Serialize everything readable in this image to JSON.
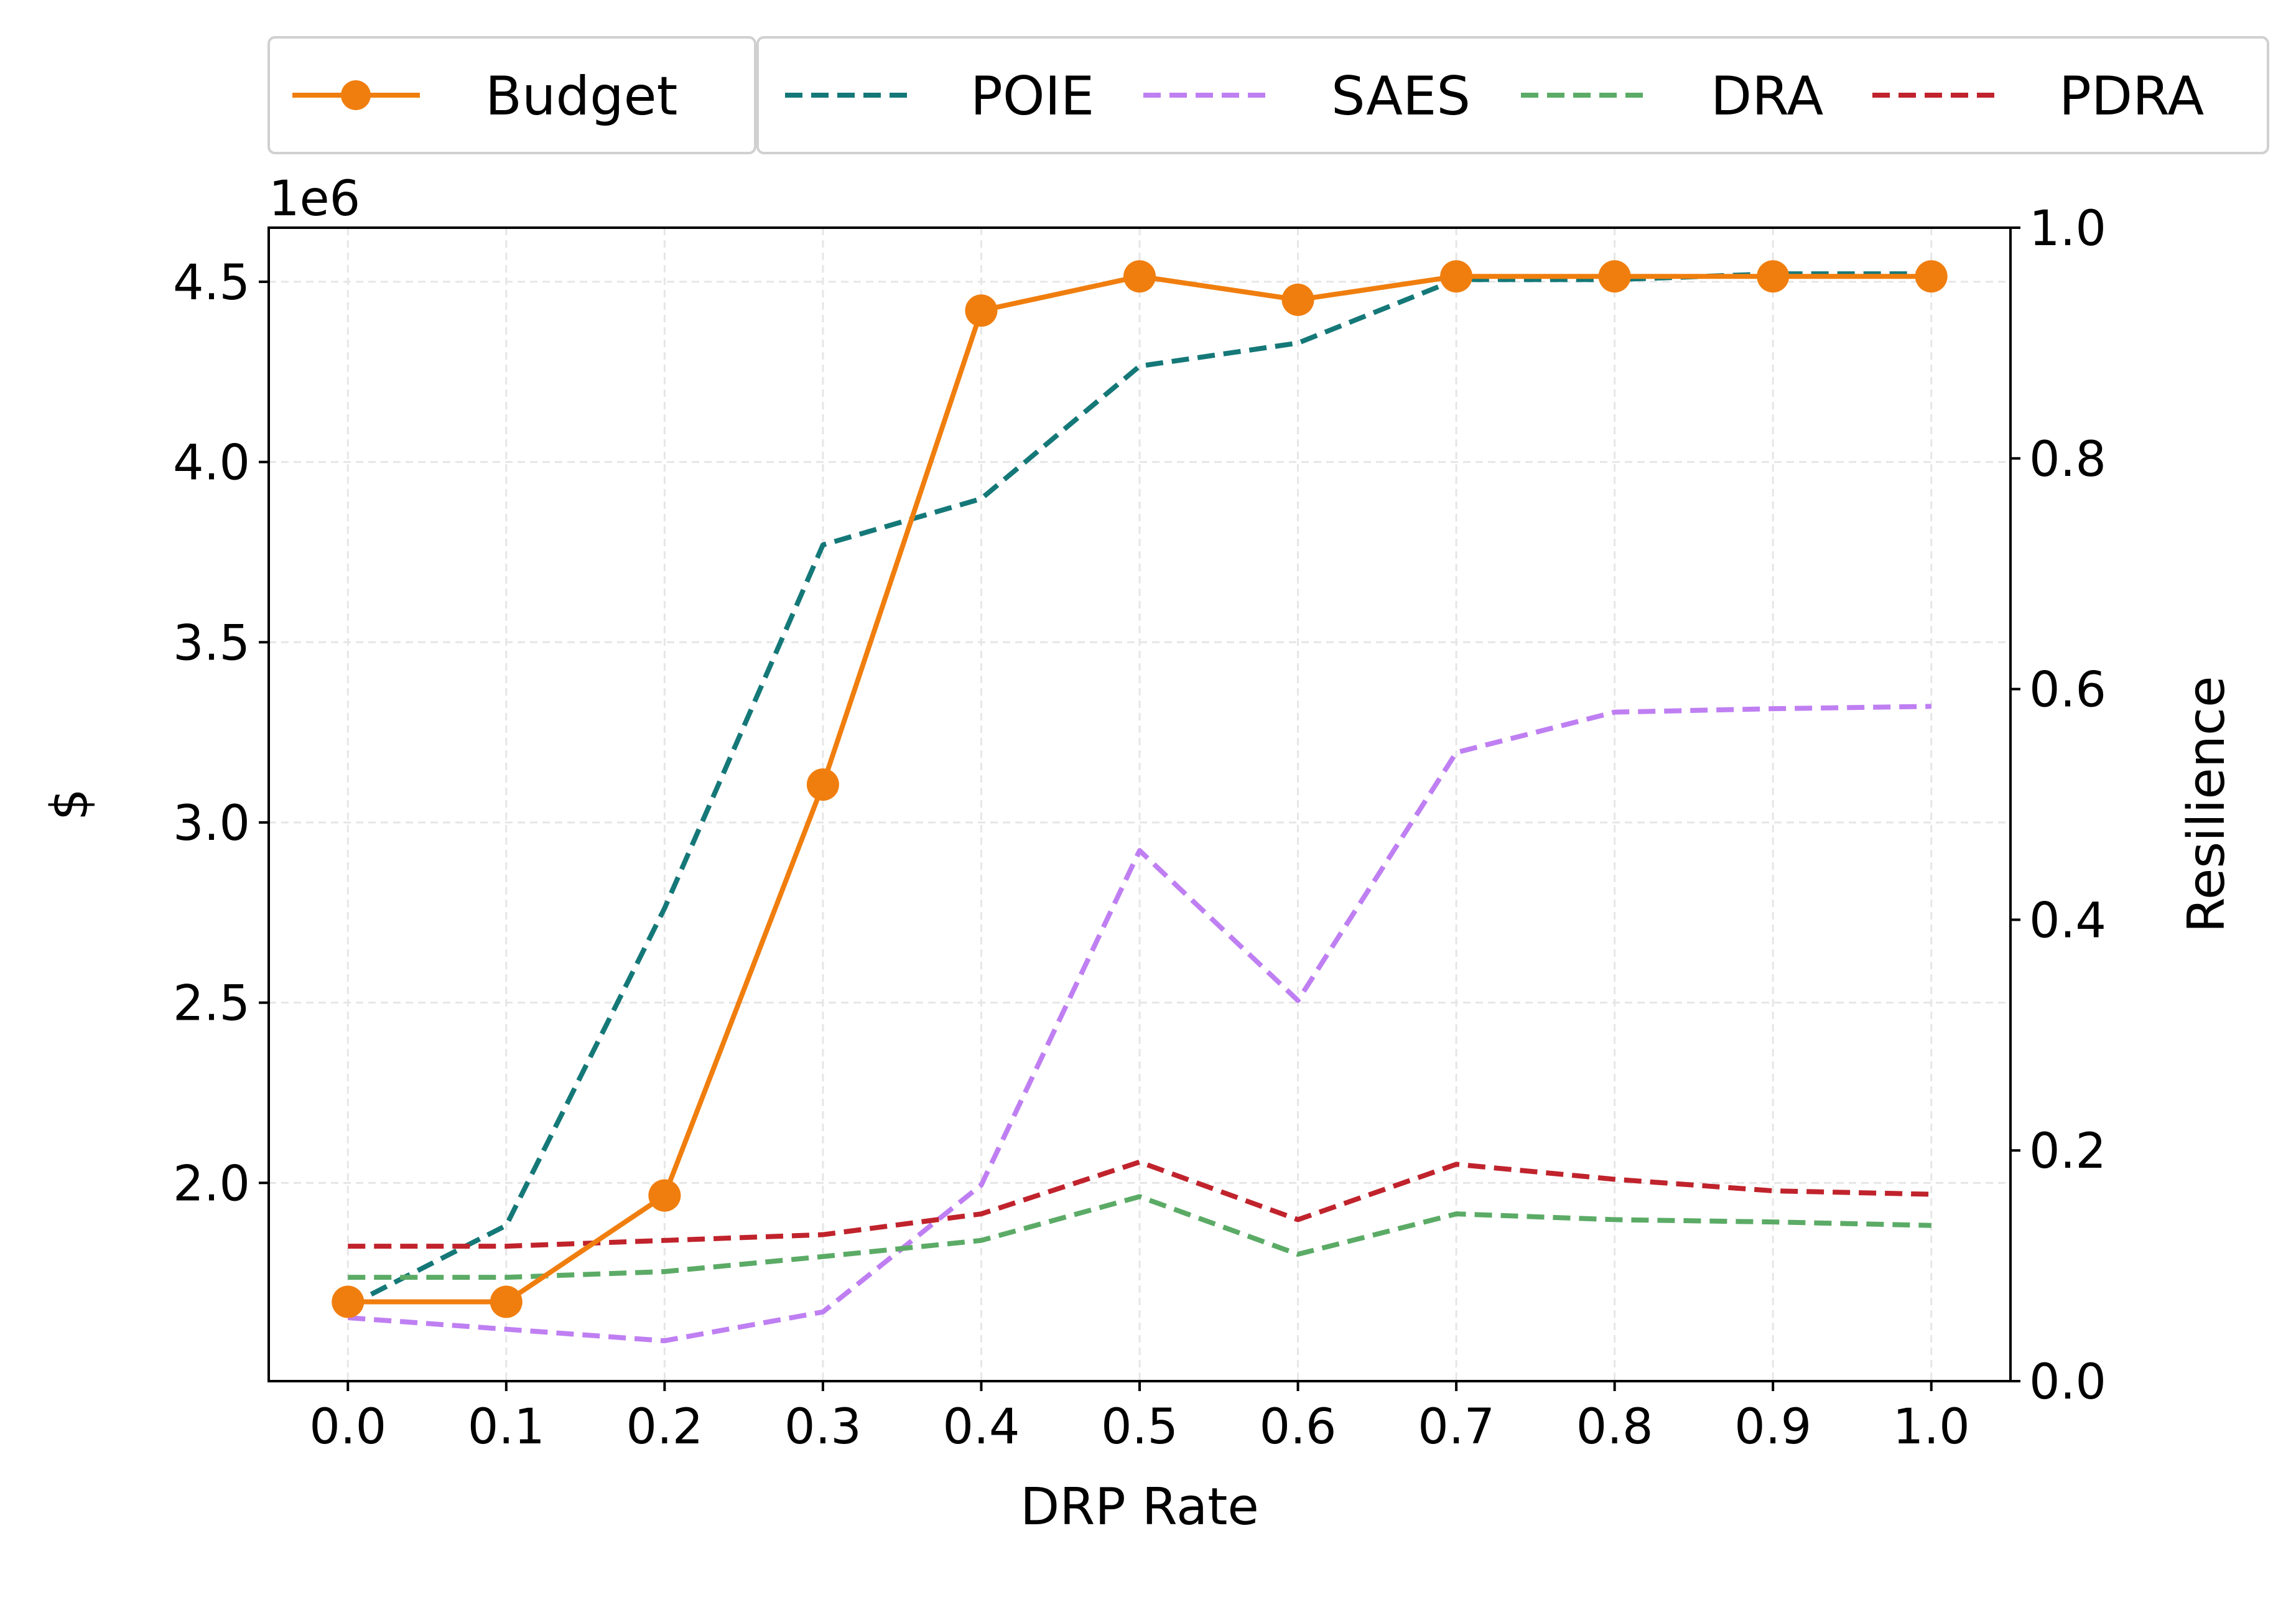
{
  "chart_data": {
    "type": "line",
    "xlabel": "DRP Rate",
    "ylabel": "$",
    "ylabel_right": "Resilience",
    "y_offset_label": "1e6",
    "x": [
      0.0,
      0.1,
      0.2,
      0.3,
      0.4,
      0.5,
      0.6,
      0.7,
      0.8,
      0.9,
      1.0
    ],
    "x_tick_labels": [
      "0.0",
      "0.1",
      "0.2",
      "0.3",
      "0.4",
      "0.5",
      "0.6",
      "0.7",
      "0.8",
      "0.9",
      "1.0"
    ],
    "xlim": [
      -0.05,
      1.05
    ],
    "y_left_ticks": [
      2.0,
      2.5,
      3.0,
      3.5,
      4.0,
      4.5
    ],
    "y_left_tick_labels": [
      "2.0",
      "2.5",
      "3.0",
      "3.5",
      "4.0",
      "4.5"
    ],
    "y_left_lim": [
      1.45,
      4.65
    ],
    "y_right_ticks": [
      0.0,
      0.2,
      0.4,
      0.6,
      0.8,
      1.0
    ],
    "y_right_tick_labels": [
      "0.0",
      "0.2",
      "0.4",
      "0.6",
      "0.8",
      "1.0"
    ],
    "y_right_lim": [
      0.0,
      1.0
    ],
    "grid": true,
    "legend_position": "top",
    "series": [
      {
        "name": "Budget",
        "axis": "left",
        "style": "solid",
        "marker": "circle",
        "color": "#f07e0e",
        "values": [
          1.67,
          1.67,
          1.965,
          3.105,
          4.42,
          4.515,
          4.45,
          4.515,
          4.515,
          4.515,
          4.515
        ]
      },
      {
        "name": "POIE",
        "axis": "right",
        "style": "dashed",
        "color": "#157878",
        "values": [
          0.065,
          0.135,
          0.41,
          0.725,
          0.765,
          0.88,
          0.9,
          0.955,
          0.955,
          0.96,
          0.96
        ]
      },
      {
        "name": "SAES",
        "axis": "right",
        "style": "dashed",
        "color": "#bf7ff2",
        "values": [
          0.055,
          0.045,
          0.035,
          0.06,
          0.17,
          0.46,
          0.33,
          0.545,
          0.58,
          0.583,
          0.585
        ]
      },
      {
        "name": "DRA",
        "axis": "right",
        "style": "dashed",
        "color": "#5bab66",
        "values": [
          0.09,
          0.09,
          0.095,
          0.108,
          0.122,
          0.16,
          0.11,
          0.145,
          0.14,
          0.138,
          0.135
        ]
      },
      {
        "name": "PDRA",
        "axis": "right",
        "style": "dashed",
        "color": "#c0232c",
        "values": [
          0.117,
          0.117,
          0.122,
          0.127,
          0.145,
          0.19,
          0.14,
          0.188,
          0.175,
          0.165,
          0.162
        ]
      }
    ]
  }
}
